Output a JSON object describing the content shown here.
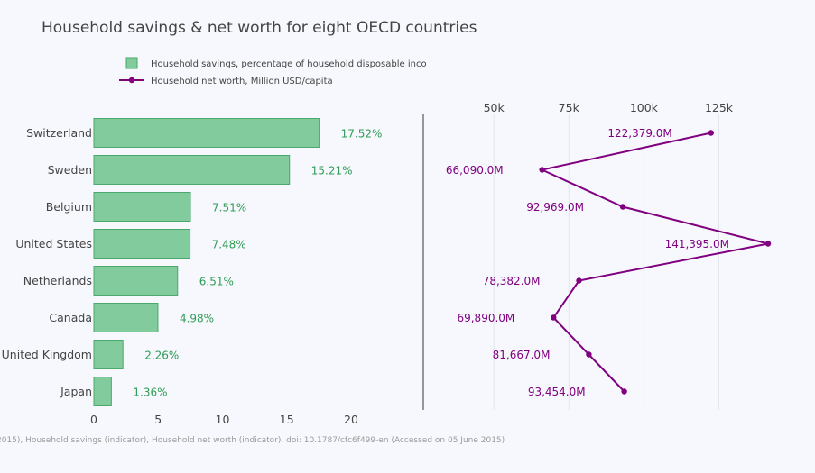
{
  "title": "Household savings & net worth for eight OECD countries",
  "source_note": "2015), Household savings (indicator), Household net worth (indicator). doi: 10.1787/cfc6f499-en (Accessed on 05 June 2015)",
  "colors": {
    "bar_fill": "#82cb9d",
    "bar_stroke": "#4aa86c",
    "bar_label": "#2f9c55",
    "line": "#800080",
    "axis_text": "#444444",
    "title": "#444444",
    "note": "#9a9a9a",
    "divider": "#777777",
    "grid": "#e4e6ef"
  },
  "chart_data": [
    {
      "type": "bar",
      "orientation": "horizontal",
      "categories": [
        "Switzerland",
        "Sweden",
        "Belgium",
        "United States",
        "Netherlands",
        "Canada",
        "United Kingdom",
        "Japan"
      ],
      "series": [
        {
          "name": "Household savings, percentage of household disposable inco",
          "values": [
            17.52,
            15.21,
            7.51,
            7.48,
            6.51,
            4.98,
            2.26,
            1.36
          ]
        }
      ],
      "data_labels": [
        "17.52%",
        "15.21%",
        "7.51%",
        "7.48%",
        "6.51%",
        "4.98%",
        "2.26%",
        "1.36%"
      ],
      "xlim": [
        0,
        24
      ],
      "xticks": [
        0,
        5,
        10,
        15,
        20
      ],
      "xtick_labels": [
        "0",
        "5",
        "10",
        "15",
        "20"
      ],
      "grid": false
    },
    {
      "type": "line",
      "categories": [
        "Switzerland",
        "Sweden",
        "Belgium",
        "United States",
        "Netherlands",
        "Canada",
        "United Kingdom",
        "Japan"
      ],
      "series": [
        {
          "name": "Household net worth, Million USD/capita",
          "values": [
            122379,
            66090,
            92969,
            141395,
            78382,
            69890,
            81667,
            93454
          ]
        }
      ],
      "data_labels": [
        "122,379.0M",
        "66,090.0M",
        "92,969.0M",
        "141,395.0M",
        "78,382.0M",
        "69,890.0M",
        "81,667.0M",
        "93,454.0M"
      ],
      "xlim": [
        28000,
        145000
      ],
      "xticks": [
        50000,
        75000,
        100000,
        125000
      ],
      "xtick_labels": [
        "50k",
        "75k",
        "100k",
        "125k"
      ],
      "xaxis_position": "top",
      "grid": true
    }
  ],
  "legend": {
    "position": "top",
    "items": [
      {
        "label": "Household savings, percentage of household disposable inco",
        "marker": "square"
      },
      {
        "label": "Household net worth, Million USD/capita",
        "marker": "line-dot"
      }
    ]
  }
}
